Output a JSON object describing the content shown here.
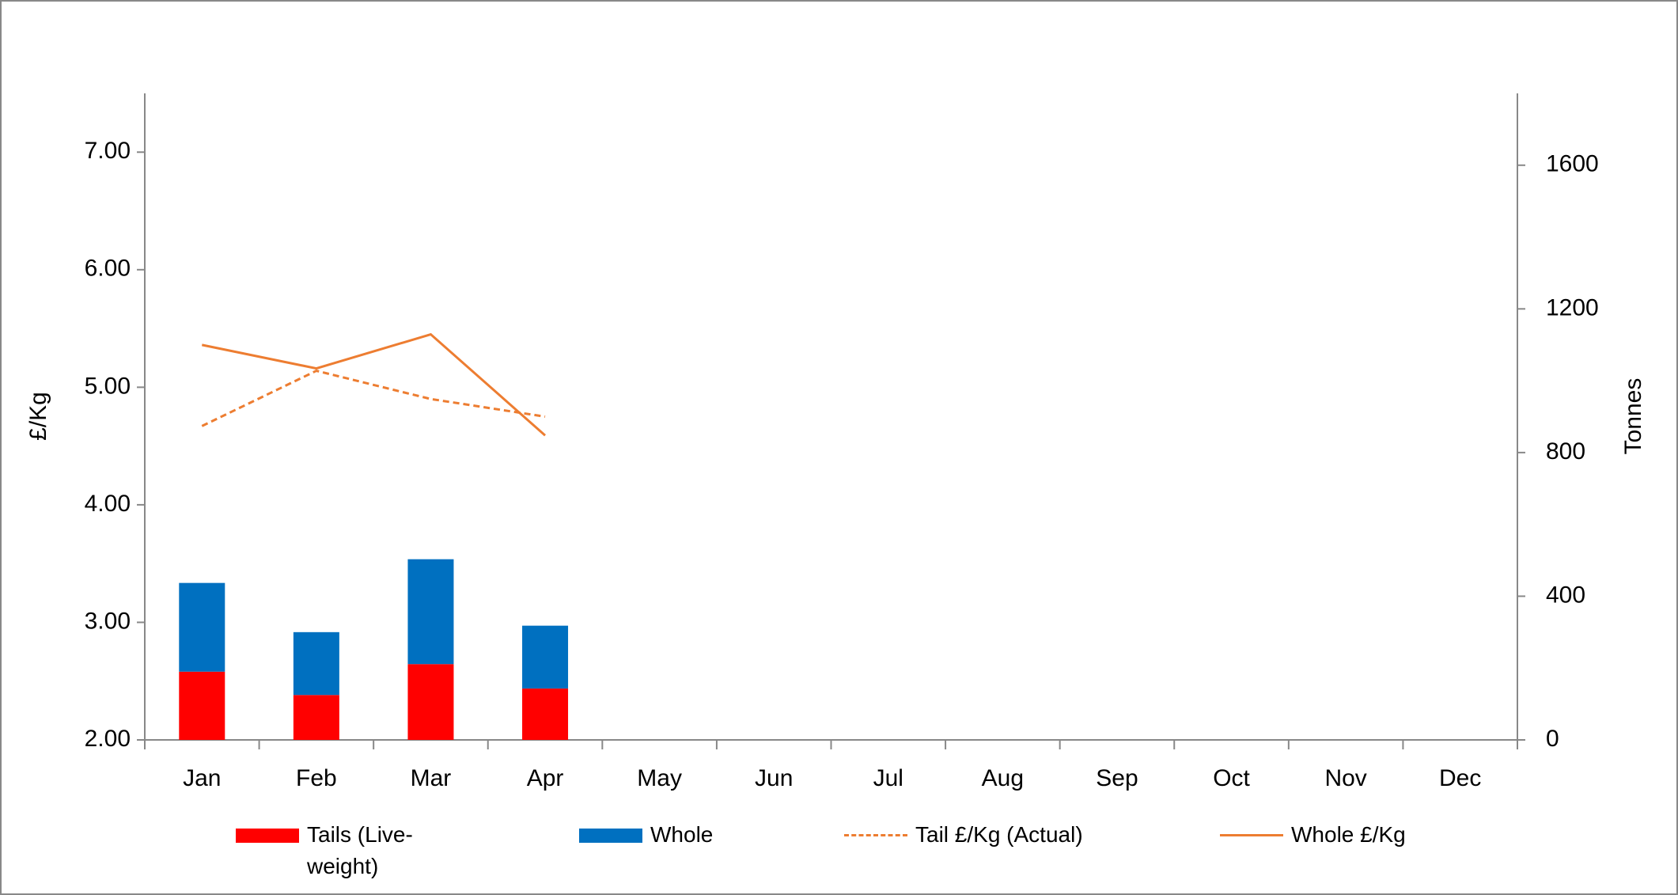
{
  "chart_data": {
    "type": "bar_line",
    "y_label": "£/Kg",
    "y2_label": "Tonnes",
    "categories": [
      "Jan",
      "Feb",
      "Mar",
      "Apr",
      "May",
      "Jun",
      "Jul",
      "Aug",
      "Sep",
      "Oct",
      "Nov",
      "Dec"
    ],
    "ylim": [
      2,
      7.5
    ],
    "yticks": [
      {
        "value": 2,
        "label": "2.00"
      },
      {
        "value": 3,
        "label": "3.00"
      },
      {
        "value": 4,
        "label": "4.00"
      },
      {
        "value": 5,
        "label": "5.00"
      },
      {
        "value": 6,
        "label": "6.00"
      },
      {
        "value": 7,
        "label": "7.00"
      }
    ],
    "y2lim": [
      0,
      1800
    ],
    "y2ticks": [
      0,
      400,
      800,
      1200,
      1600
    ],
    "series": [
      {
        "name": "Tails (Live-weight)",
        "type": "bar",
        "axis": "y2",
        "stacked": true,
        "color": "#ff0000",
        "values": [
          190,
          125,
          211,
          143,
          null,
          null,
          null,
          null,
          null,
          null,
          null,
          null
        ]
      },
      {
        "name": "Whole",
        "type": "bar",
        "axis": "y2",
        "stacked": true,
        "color": "#0070c0",
        "values": [
          247,
          175,
          292,
          175,
          null,
          null,
          null,
          null,
          null,
          null,
          null,
          null
        ]
      },
      {
        "name": "Tail £/Kg (Actual)",
        "type": "line",
        "dashed": true,
        "color": "#ed7d31",
        "values": [
          4.67,
          5.14,
          4.9,
          4.75,
          null,
          null,
          null,
          null,
          null,
          null,
          null,
          null
        ]
      },
      {
        "name": "Whole £/Kg",
        "type": "line",
        "dashed": false,
        "color": "#ed7d31",
        "values": [
          5.36,
          5.16,
          5.45,
          4.59,
          null,
          null,
          null,
          null,
          null,
          null,
          null,
          null
        ]
      }
    ],
    "legend": "bottom"
  }
}
